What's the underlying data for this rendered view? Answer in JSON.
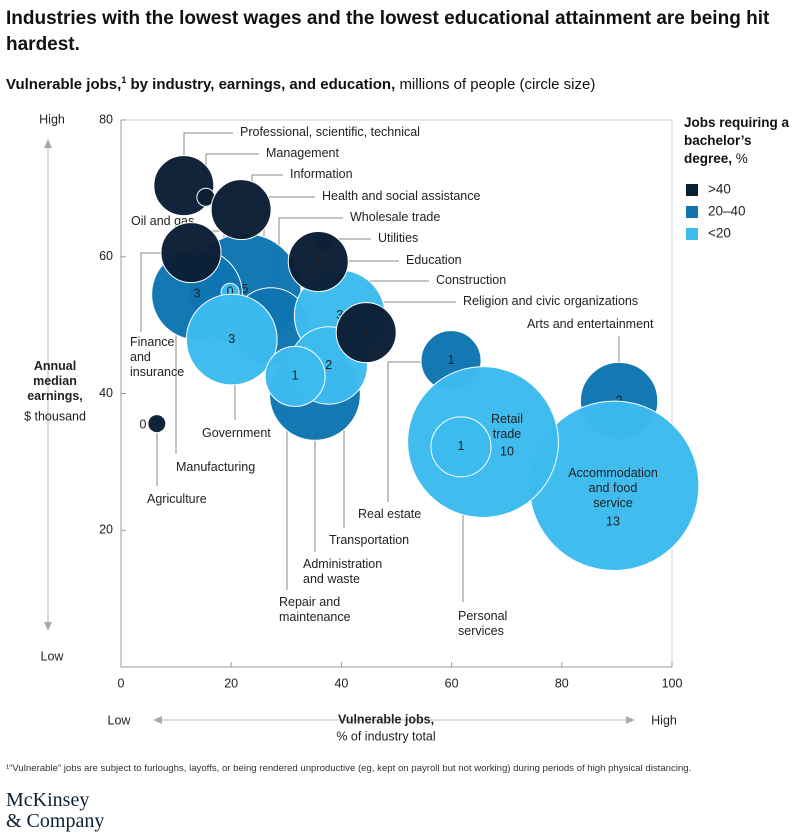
{
  "title": "Industries with the lowest wages and the lowest educational attainment are being hit hardest.",
  "chart_data": {
    "type": "bubble",
    "subtitle": "Vulnerable jobs,",
    "subtitle_note": "1",
    "subtitle_rest": "by industry, earnings, and education,",
    "subtitle_unit": "millions of people (circle size)",
    "y_label": "Annual median earnings,",
    "y_unit": "$ thousand",
    "y_high": "High",
    "y_low": "Low",
    "x_label": "Vulnerable jobs,",
    "x_unit": "% of industry total",
    "x_low": "Low",
    "x_high": "High",
    "xlim": [
      0,
      100
    ],
    "xticks": [
      0,
      20,
      40,
      60,
      80,
      100
    ],
    "ylim": [
      0,
      80
    ],
    "yticks": [
      20,
      40,
      60,
      80
    ],
    "legend_title": "Jobs requiring a bachelor’s degree,",
    "legend_unit": "%",
    "series": [
      {
        "name": ">40",
        "color": "#0c2035",
        "labels": [
          "Professional, scientific, technical",
          "Management",
          "Information",
          "Finance and insurance",
          "Education",
          "Religion and civic organizations",
          "Agriculture"
        ],
        "x": [
          11.4,
          15.4,
          21.8,
          12.7,
          35.8,
          44.5,
          6.5
        ],
        "values": [
          70.4,
          68.7,
          66.9,
          60.6,
          59.3,
          48.9,
          35.6
        ],
        "sizes": [
          1,
          0,
          1,
          1,
          1,
          1,
          0
        ]
      },
      {
        "name": "20–40",
        "color": "#0f75b1",
        "labels": [
          "Health and social assistance",
          "Manufacturing",
          "Wholesale trade",
          "Utilities",
          "Administration and waste",
          "Real estate",
          "Arts and entertainment"
        ],
        "x": [
          22.5,
          13.8,
          27.2,
          36.8,
          35.2,
          59.9,
          90.4
        ],
        "values": [
          55.2,
          54.5,
          49.8,
          62.2,
          39.8,
          44.8,
          38.9
        ],
        "sizes": [
          5,
          3,
          2,
          0,
          3,
          1,
          2
        ]
      },
      {
        "name": "<20",
        "color": "#3cbbef",
        "labels": [
          "Accommodation and food service",
          "Retail trade",
          "Personal services",
          "Oil and gas",
          "Government",
          "Construction",
          "Transportation",
          "Repair and maintenance"
        ],
        "x": [
          89.5,
          65.7,
          61.7,
          19.8,
          20.1,
          39.7,
          37.7,
          31.6
        ],
        "values": [
          26.5,
          32.9,
          32.2,
          54.8,
          47.9,
          51.4,
          44.1,
          42.5
        ],
        "sizes": [
          13,
          10,
          1,
          0,
          3,
          3,
          2,
          1
        ]
      }
    ]
  },
  "footnote": "¹“Vulnerable” jobs are subject to furloughs, layoffs, or being rendered unproductive (eg, kept on payroll but not working) during periods of high physical distancing.",
  "logo": [
    "McKinsey",
    "& Company"
  ]
}
